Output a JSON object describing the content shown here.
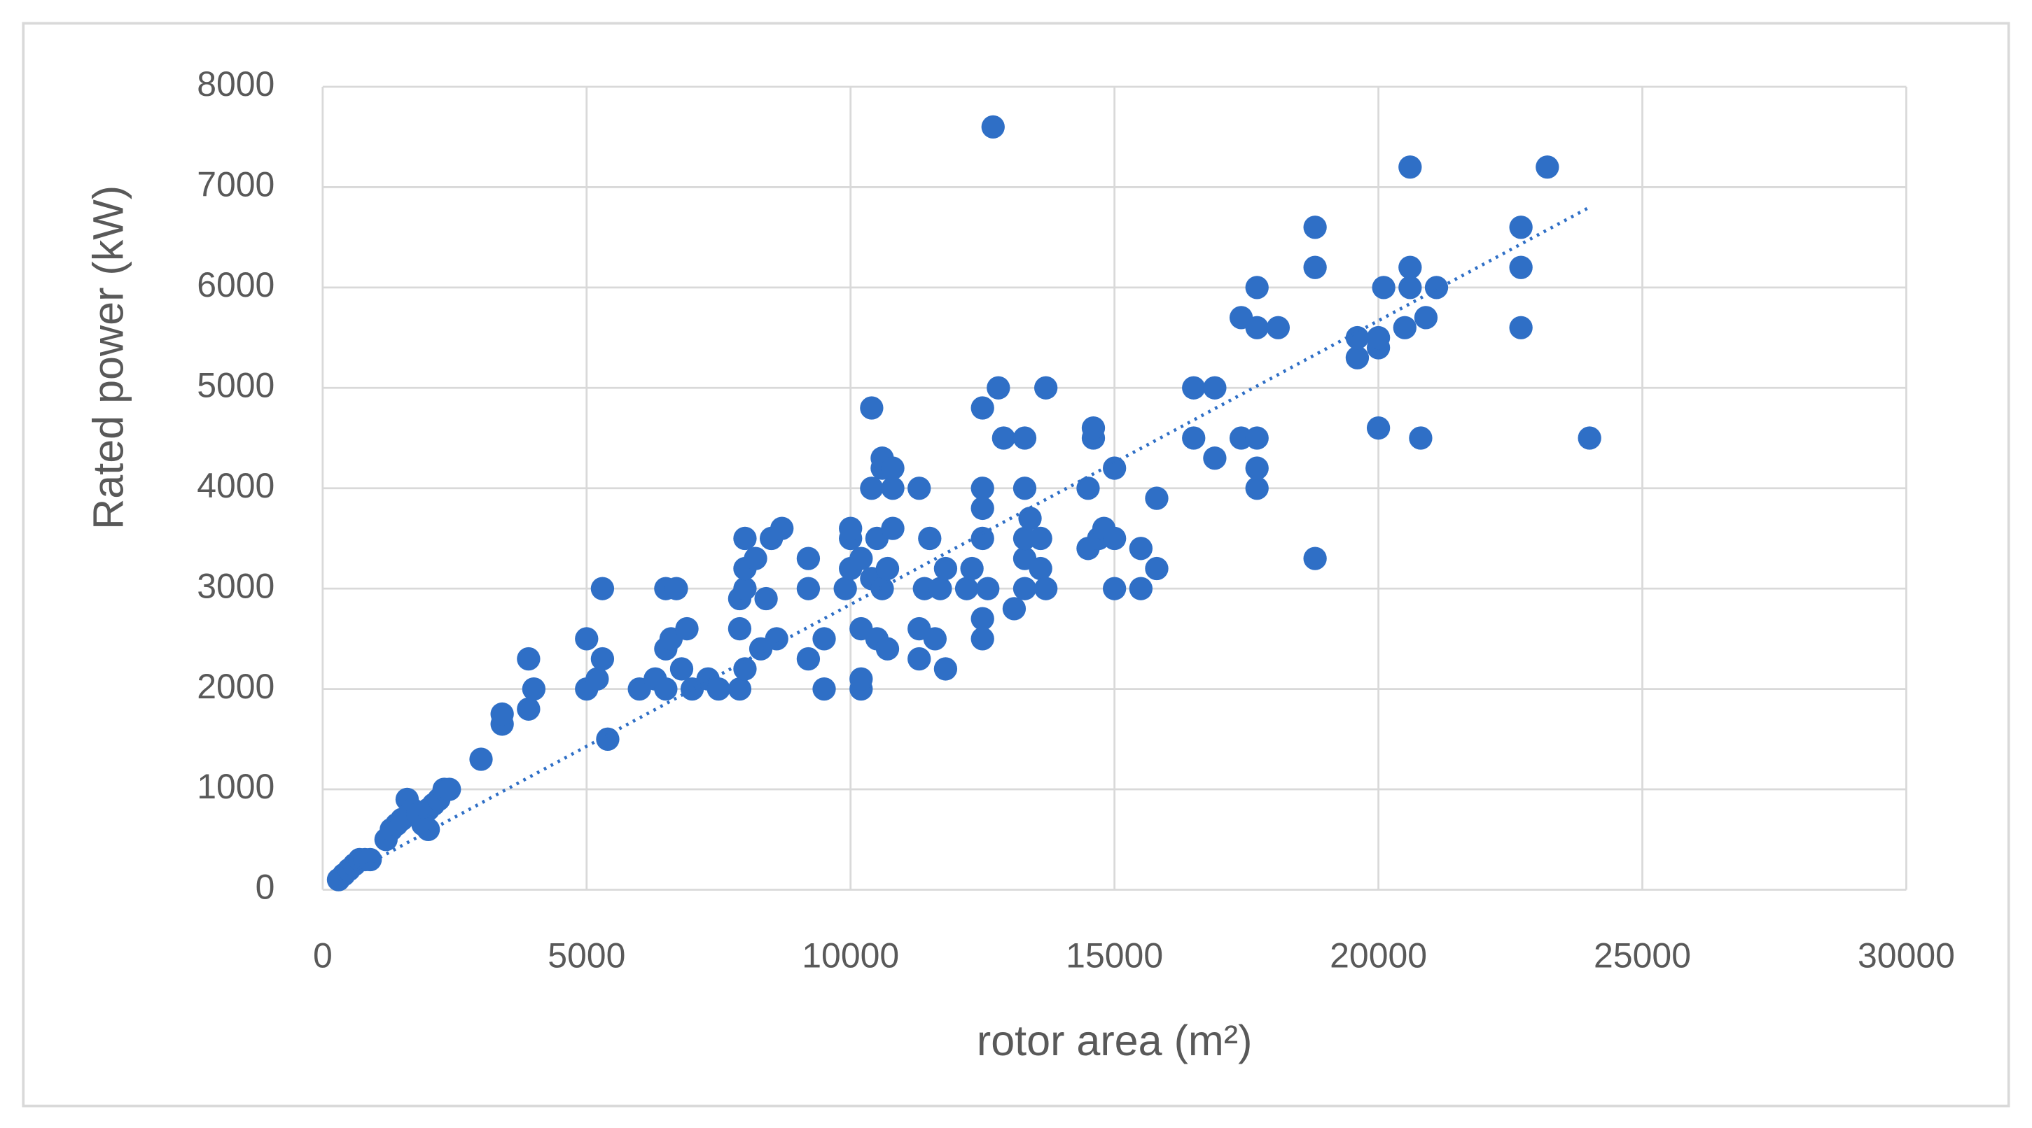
{
  "chart_data": {
    "type": "scatter",
    "x_label": "rotor area (m²)",
    "y_label": "Rated power (kW)",
    "color": "#2f6fc6",
    "grid": true,
    "xlim": [
      0,
      30000
    ],
    "ylim": [
      0,
      8000
    ],
    "xticks": [
      0,
      5000,
      10000,
      15000,
      20000,
      25000,
      30000
    ],
    "yticks": [
      0,
      1000,
      2000,
      3000,
      4000,
      5000,
      6000,
      7000,
      8000
    ],
    "x": [
      300,
      400,
      500,
      600,
      700,
      800,
      900,
      1200,
      1300,
      1400,
      1500,
      1600,
      1700,
      1800,
      1900,
      2000,
      2100,
      2200,
      2300,
      2400,
      2000,
      3000,
      3400,
      3400,
      3900,
      3900,
      4000,
      5000,
      5000,
      5200,
      5300,
      5300,
      5400,
      6000,
      6300,
      6500,
      6500,
      6500,
      6700,
      6600,
      6800,
      6900,
      7000,
      7300,
      7500,
      7900,
      8000,
      7900,
      7900,
      8000,
      8000,
      8000,
      8200,
      8300,
      8400,
      8500,
      8600,
      8700,
      9200,
      9200,
      9200,
      9500,
      9500,
      9900,
      10000,
      10000,
      10000,
      10200,
      10200,
      10200,
      10200,
      10400,
      10400,
      10400,
      10500,
      10500,
      10600,
      10600,
      10600,
      10700,
      10800,
      10800,
      10800,
      10700,
      11300,
      11300,
      11300,
      11400,
      11500,
      11600,
      11700,
      11800,
      11800,
      12200,
      12300,
      12500,
      12500,
      12500,
      12500,
      12500,
      12500,
      12600,
      12700,
      12800,
      12900,
      13100,
      13300,
      13300,
      13300,
      13300,
      13300,
      13400,
      13600,
      13600,
      13700,
      13700,
      14500,
      14500,
      14600,
      14600,
      14700,
      14800,
      15000,
      15000,
      15000,
      15500,
      15500,
      15800,
      15800,
      16500,
      16500,
      16900,
      16900,
      17400,
      17400,
      17700,
      17700,
      17700,
      17700,
      17700,
      18100,
      18800,
      18800,
      18800,
      19600,
      19600,
      20000,
      20000,
      20000,
      20100,
      20500,
      20600,
      20600,
      20600,
      20800,
      20900,
      21100,
      22700,
      22700,
      22700,
      23200,
      24000
    ],
    "values": [
      100,
      150,
      200,
      250,
      300,
      300,
      300,
      500,
      600,
      650,
      700,
      900,
      800,
      750,
      650,
      800,
      850,
      900,
      1000,
      1000,
      600,
      1300,
      1650,
      1750,
      1800,
      2300,
      2000,
      2000,
      2500,
      2100,
      2300,
      3000,
      1500,
      2000,
      2100,
      2000,
      2400,
      3000,
      3000,
      2500,
      2200,
      2600,
      2000,
      2100,
      2000,
      2000,
      2200,
      2600,
      2900,
      3000,
      3200,
      3500,
      3300,
      2400,
      2900,
      3500,
      2500,
      3600,
      2300,
      3000,
      3300,
      2000,
      2500,
      3000,
      3200,
      3500,
      3600,
      2000,
      2100,
      2600,
      3300,
      3100,
      4000,
      4800,
      3500,
      2500,
      3000,
      4200,
      4300,
      2400,
      3600,
      4000,
      4200,
      3200,
      2300,
      2600,
      4000,
      3000,
      3500,
      2500,
      3000,
      2200,
      3200,
      3000,
      3200,
      2500,
      2700,
      3500,
      3800,
      4000,
      4800,
      3000,
      7600,
      5000,
      4500,
      2800,
      3000,
      3300,
      3500,
      4000,
      4500,
      3700,
      3200,
      3500,
      3000,
      5000,
      3400,
      4000,
      4500,
      4600,
      3500,
      3600,
      3000,
      3500,
      4200,
      3000,
      3400,
      3200,
      3900,
      4500,
      5000,
      4300,
      5000,
      4500,
      5700,
      4000,
      4200,
      4500,
      5600,
      6000,
      5600,
      3300,
      6200,
      6600,
      5300,
      5500,
      4600,
      5400,
      5500,
      6000,
      5600,
      6000,
      6200,
      7200,
      4500,
      5700,
      6000,
      5600,
      6200,
      6600,
      7200,
      4500
    ],
    "trendline": {
      "x": [
        300,
        24000
      ],
      "values": [
        100,
        6800
      ]
    }
  }
}
